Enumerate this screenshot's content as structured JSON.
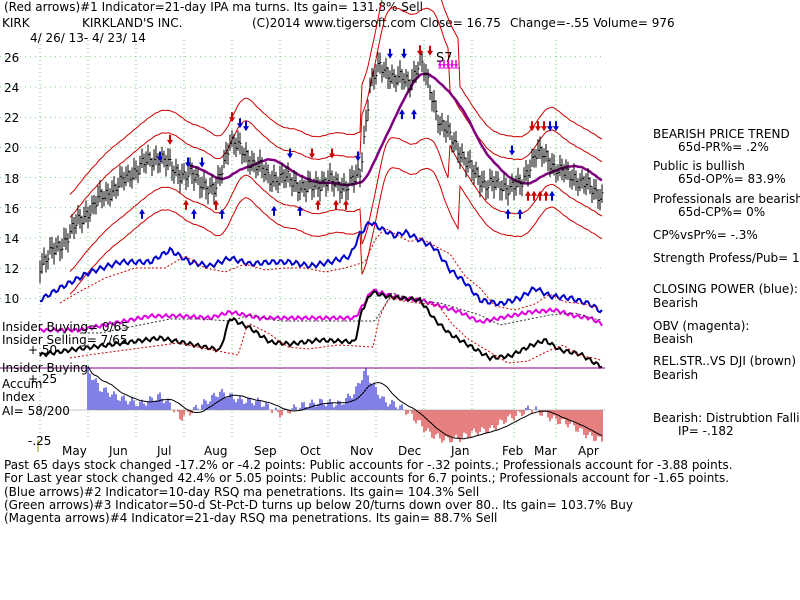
{
  "header": {
    "line1": "(Red arrows)#1 Indicator=21-day IPA ma turns. Its gain= 131.8% Sell",
    "ticker": "KIRK",
    "company": "KIRKLAND'S INC.",
    "copyright": "(C)2014 www.tigersoft.com",
    "close": "Close= 16.75",
    "change": "Change=-.55 Volume= 976",
    "date_range": "4/ 26/ 13- 4/ 23/ 14"
  },
  "annotation_s7": "S7",
  "price_ticks": [
    "26",
    "24",
    "22",
    "20",
    "18",
    "16",
    "14",
    "12",
    "10"
  ],
  "panel_labels": {
    "insider_buying": "Insider Buying= 0/65",
    "insider_selling": "Insider Selling= 7/65",
    "plus50": "+.50",
    "insider_buying2": "Insider Buying",
    "accum": "Accum",
    "plus25": "+.25",
    "index": "Index",
    "ai": "AI= 58/200",
    "minus25": "-.25"
  },
  "month_labels": [
    "May",
    "Jun",
    "Jul",
    "Aug",
    "Sep",
    "Oct",
    "Nov",
    "Dec",
    "Jan",
    "Feb",
    "Mar",
    "Apr"
  ],
  "right_panel": {
    "trend_title": "BEARISH PRICE TREND",
    "pr": "65d-PR%= .2%",
    "public": "Public is bullish",
    "op": "65d-OP%= 83.9%",
    "pros": "Professionals are bearish",
    "cp": "65d-CP%= 0%",
    "cpvspr": "CP%vsPr%= -.3%",
    "strength": "Strength Profess/Pub= 12",
    "closing_power": "CLOSING POWER (blue):",
    "cp_val": "Bearish",
    "obv": "OBV (magenta):",
    "obv_val": "Beaish",
    "relstr": "REL.STR..VS DJI (brown)",
    "relstr_val": "Bearish",
    "distribution": "Bearish: Distrubtion Falling",
    "ip": "IP= -.182"
  },
  "footer": {
    "line1": "Past 65 days stock changed -17.2% or -4.2 points: Public accounts for -.32 points.; Professionals account for -3.88 points.",
    "line2": "For Last year stock changed 42.4% or 5.05 points: Public accounts for 6.7 points.; Professionals account for -1.65 points.",
    "line3": "(Blue arrows)#2 Indicator=10-day RSQ ma penetrations. Its gain= 104.3% Sell",
    "line4": "(Green arrows)#3 Indicator=50-d St-Pct-D turns up below 20/turns down over 80.. Its gain= 103.7% Buy",
    "line5": "(Magenta arrows)#4 Indicator=21-day RSQ ma penetrations. Its gain= 88.7% Sell"
  },
  "colors": {
    "price": "#000000",
    "bands": "#cc0000",
    "ma": "#800080",
    "closing_power": "#0000cc",
    "obv": "#e000e0",
    "accum_pos": "#0000cc",
    "accum_neg": "#cc0000",
    "grid": "#00aa00"
  },
  "chart_data": {
    "type": "line",
    "title": "KIRKLAND'S INC.",
    "x": [
      "May",
      "Jun",
      "Jul",
      "Aug",
      "Sep",
      "Oct",
      "Nov",
      "Dec",
      "Jan",
      "Feb",
      "Mar",
      "Apr"
    ],
    "ylim": [
      9,
      27
    ],
    "series": [
      {
        "name": "KIRK",
        "values": [
          12.5,
          16.5,
          18.5,
          19.5,
          17.8,
          17.5,
          24.5,
          24.5,
          18.5,
          17.5,
          19.5,
          16.75
        ]
      }
    ],
    "grid": true
  }
}
